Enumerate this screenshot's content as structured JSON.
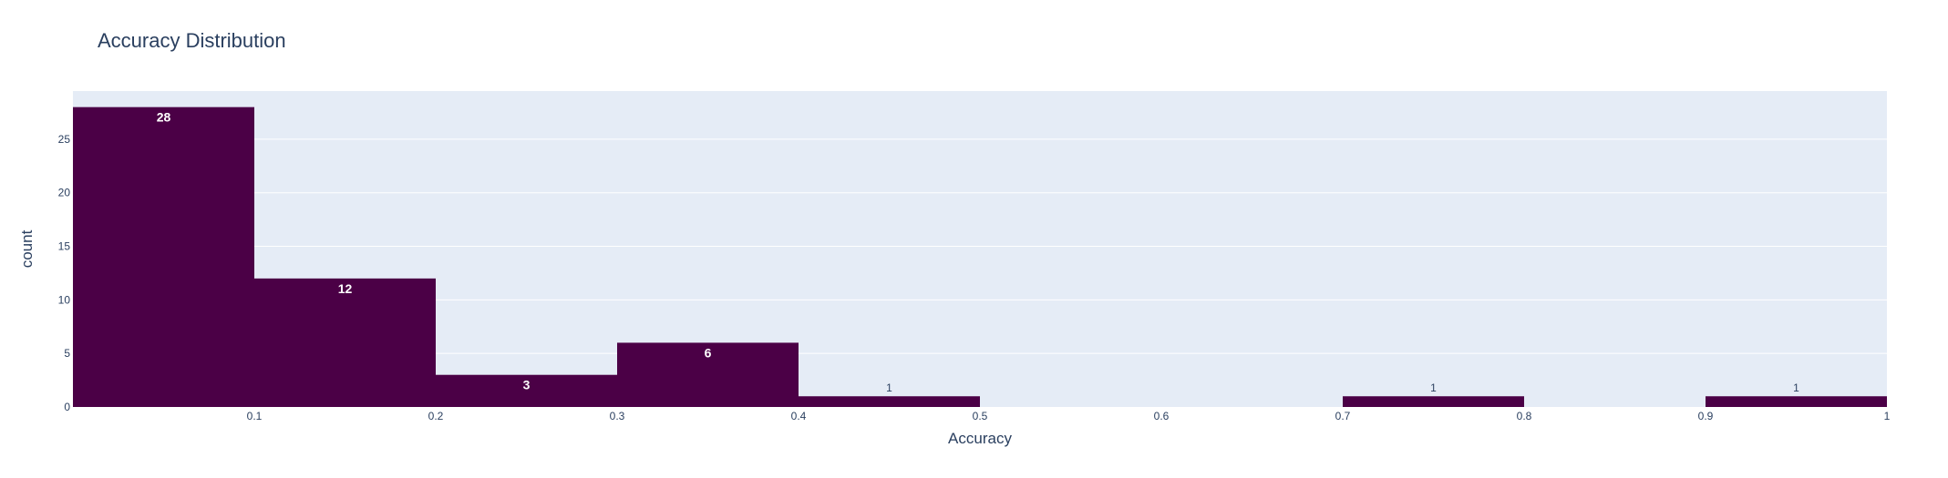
{
  "chart_data": {
    "type": "bar",
    "title": "Accuracy Distribution",
    "xlabel": "Accuracy",
    "ylabel": "count",
    "xlim": [
      0,
      1
    ],
    "ylim": [
      0,
      29.5
    ],
    "x_ticks": [
      0.1,
      0.2,
      0.3,
      0.4,
      0.5,
      0.6,
      0.7,
      0.8,
      0.9,
      1
    ],
    "x_tick_labels": [
      "0.1",
      "0.2",
      "0.3",
      "0.4",
      "0.5",
      "0.6",
      "0.7",
      "0.8",
      "0.9",
      "1"
    ],
    "y_ticks": [
      0,
      5,
      10,
      15,
      20,
      25
    ],
    "y_tick_labels": [
      "0",
      "5",
      "10",
      "15",
      "20",
      "25"
    ],
    "grid": true,
    "bar_color": "#4b0046",
    "plot_background": "#e5ecf6",
    "bins": [
      {
        "x0": 0.0,
        "x1": 0.1,
        "count": 28,
        "label": "28"
      },
      {
        "x0": 0.1,
        "x1": 0.2,
        "count": 12,
        "label": "12"
      },
      {
        "x0": 0.2,
        "x1": 0.3,
        "count": 3,
        "label": "3"
      },
      {
        "x0": 0.3,
        "x1": 0.4,
        "count": 6,
        "label": "6"
      },
      {
        "x0": 0.4,
        "x1": 0.5,
        "count": 1,
        "label": "1"
      },
      {
        "x0": 0.7,
        "x1": 0.8,
        "count": 1,
        "label": "1"
      },
      {
        "x0": 0.9,
        "x1": 1.0,
        "count": 1,
        "label": "1"
      }
    ]
  }
}
